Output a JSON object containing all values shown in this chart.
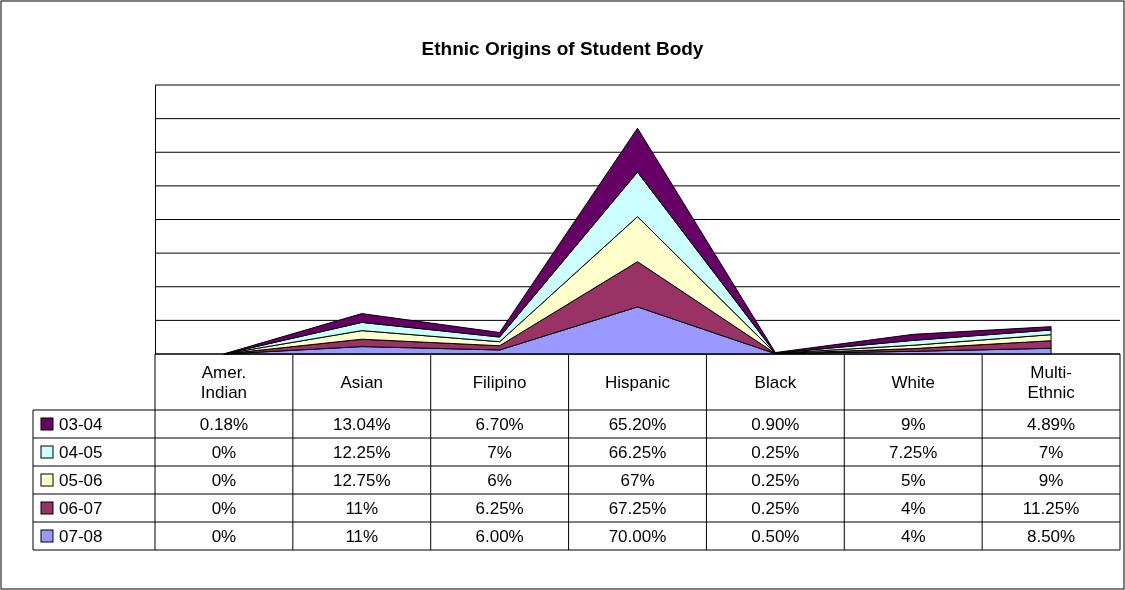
{
  "chart_data": {
    "type": "area",
    "title": "Ethnic Origins of Student Body",
    "stacked": true,
    "categories": [
      "Amer.\nIndian",
      "Asian",
      "Filipino",
      "Hispanic",
      "Black",
      "White",
      "Multi-\nEthnic"
    ],
    "series": [
      {
        "name": "07-08",
        "color": "#9999ff",
        "values": [
          0,
          11,
          6,
          70,
          0.5,
          4,
          8.5
        ],
        "value_labels": [
          "0%",
          "11%",
          "6.00%",
          "70.00%",
          "0.50%",
          "4%",
          "8.50%"
        ]
      },
      {
        "name": "06-07",
        "color": "#993366",
        "values": [
          0,
          11,
          6.25,
          67.25,
          0.25,
          4,
          11.25
        ],
        "value_labels": [
          "0%",
          "11%",
          "6.25%",
          "67.25%",
          "0.25%",
          "4%",
          "11.25%"
        ]
      },
      {
        "name": "05-06",
        "color": "#ffffcc",
        "values": [
          0,
          12.75,
          6,
          67,
          0.25,
          5,
          9
        ],
        "value_labels": [
          "0%",
          "12.75%",
          "6%",
          "67%",
          "0.25%",
          "5%",
          "9%"
        ]
      },
      {
        "name": "04-05",
        "color": "#ccffff",
        "values": [
          0,
          12.25,
          7,
          66.25,
          0.25,
          7.25,
          7
        ],
        "value_labels": [
          "0%",
          "12.25%",
          "7%",
          "66.25%",
          "0.25%",
          "7.25%",
          "7%"
        ]
      },
      {
        "name": "03-04",
        "color": "#660066",
        "values": [
          0.18,
          13.04,
          6.7,
          65.2,
          0.9,
          9,
          4.89
        ],
        "value_labels": [
          "0.18%",
          "13.04%",
          "6.70%",
          "65.20%",
          "0.90%",
          "9%",
          "4.89%"
        ]
      }
    ],
    "ylim": [
      0,
      400
    ],
    "yticks": [
      {
        "value": 0,
        "label": null
      },
      {
        "value": 50,
        "label": null
      },
      {
        "value": 100,
        "label": null
      },
      {
        "value": 150,
        "label": null
      },
      {
        "value": 200,
        "label": null
      },
      {
        "value": 250,
        "label": null
      },
      {
        "value": 300,
        "label": null
      },
      {
        "value": 350,
        "label": null
      },
      {
        "value": 400,
        "label": null
      }
    ],
    "grid": "y",
    "tick_labels": "x",
    "legend": "bottom left"
  }
}
